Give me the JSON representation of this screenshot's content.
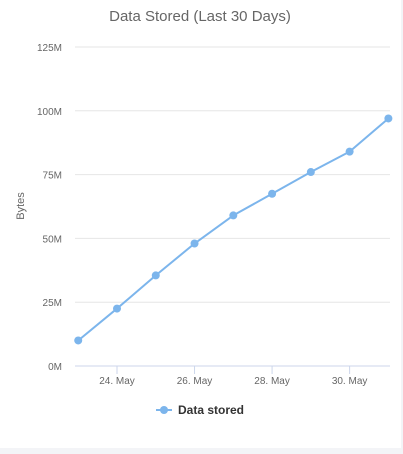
{
  "chart_data": {
    "type": "line",
    "title": "Data Stored (Last 30 Days)",
    "ylabel": "Bytes",
    "xlabel": "",
    "ylim": [
      0,
      125000000
    ],
    "yticks": [
      {
        "value": 0,
        "label": "0M"
      },
      {
        "value": 25000000,
        "label": "25M"
      },
      {
        "value": 50000000,
        "label": "50M"
      },
      {
        "value": 75000000,
        "label": "75M"
      },
      {
        "value": 100000000,
        "label": "100M"
      },
      {
        "value": 125000000,
        "label": "125M"
      }
    ],
    "xlim": [
      "2023-05-22T22:00",
      "2023-05-31T01:00"
    ],
    "xticks": [
      {
        "value": "2023-05-24",
        "label": "24. May"
      },
      {
        "value": "2023-05-26",
        "label": "26. May"
      },
      {
        "value": "2023-05-28",
        "label": "28. May"
      },
      {
        "value": "2023-05-30",
        "label": "30. May"
      }
    ],
    "series": [
      {
        "name": "Data stored",
        "color": "#7cb5ec",
        "x": [
          "2023-05-23",
          "2023-05-24",
          "2023-05-25",
          "2023-05-26",
          "2023-05-27",
          "2023-05-28",
          "2023-05-29",
          "2023-05-30",
          "2023-05-31"
        ],
        "y": [
          10000000,
          22500000,
          35500000,
          48000000,
          59000000,
          67500000,
          76000000,
          84000000,
          97000000
        ]
      }
    ],
    "grid": true,
    "legend": "bottom-center"
  }
}
